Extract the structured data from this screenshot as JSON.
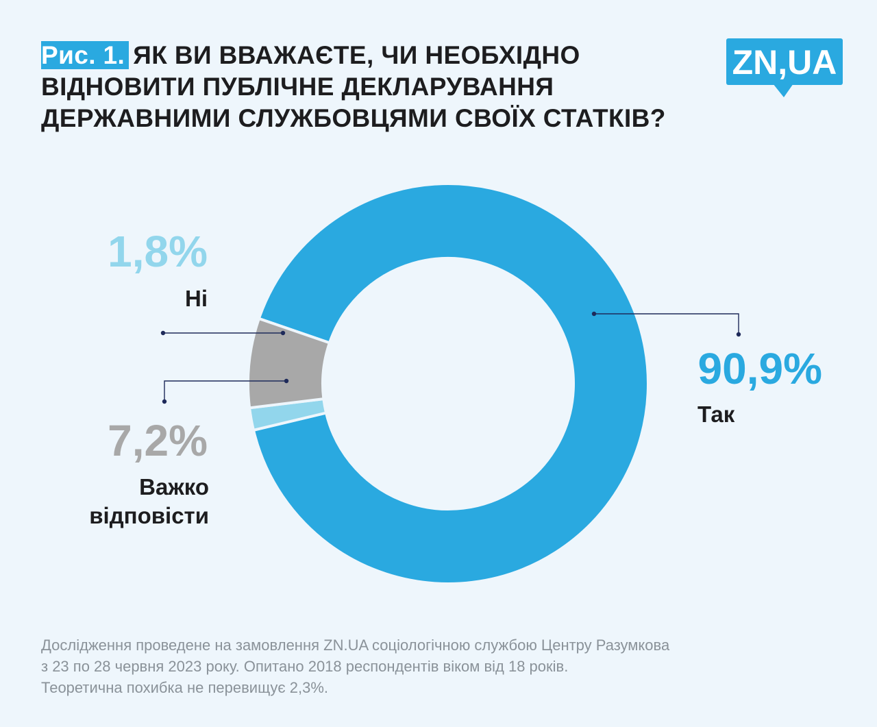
{
  "header": {
    "figure_label": "Рис. 1.",
    "title": "Як ви вважаєте, чи необхідно відновити публічне декларування державними службовцями своїх статків?"
  },
  "logo": {
    "text": "ZN,UA",
    "color": "#2aa9e0"
  },
  "chart_data": {
    "type": "pie",
    "style": "donut",
    "categories": [
      "Так",
      "Ні",
      "Важко відповісти"
    ],
    "values": [
      90.9,
      1.8,
      7.2
    ],
    "value_labels": [
      "90,9%",
      "1,8%",
      "7,2%"
    ],
    "colors": [
      "#2aa9e0",
      "#92d6ec",
      "#a8a8a8"
    ]
  },
  "footnote": {
    "lines": [
      "Дослідження проведене на замовлення ZN.UA соціологічною службою Центру Разумкова",
      "з 23 по 28 червня 2023 року. Опитано 2018 респондентів віком від 18 років.",
      "Теоретична похибка не перевищує 2,3%."
    ]
  }
}
